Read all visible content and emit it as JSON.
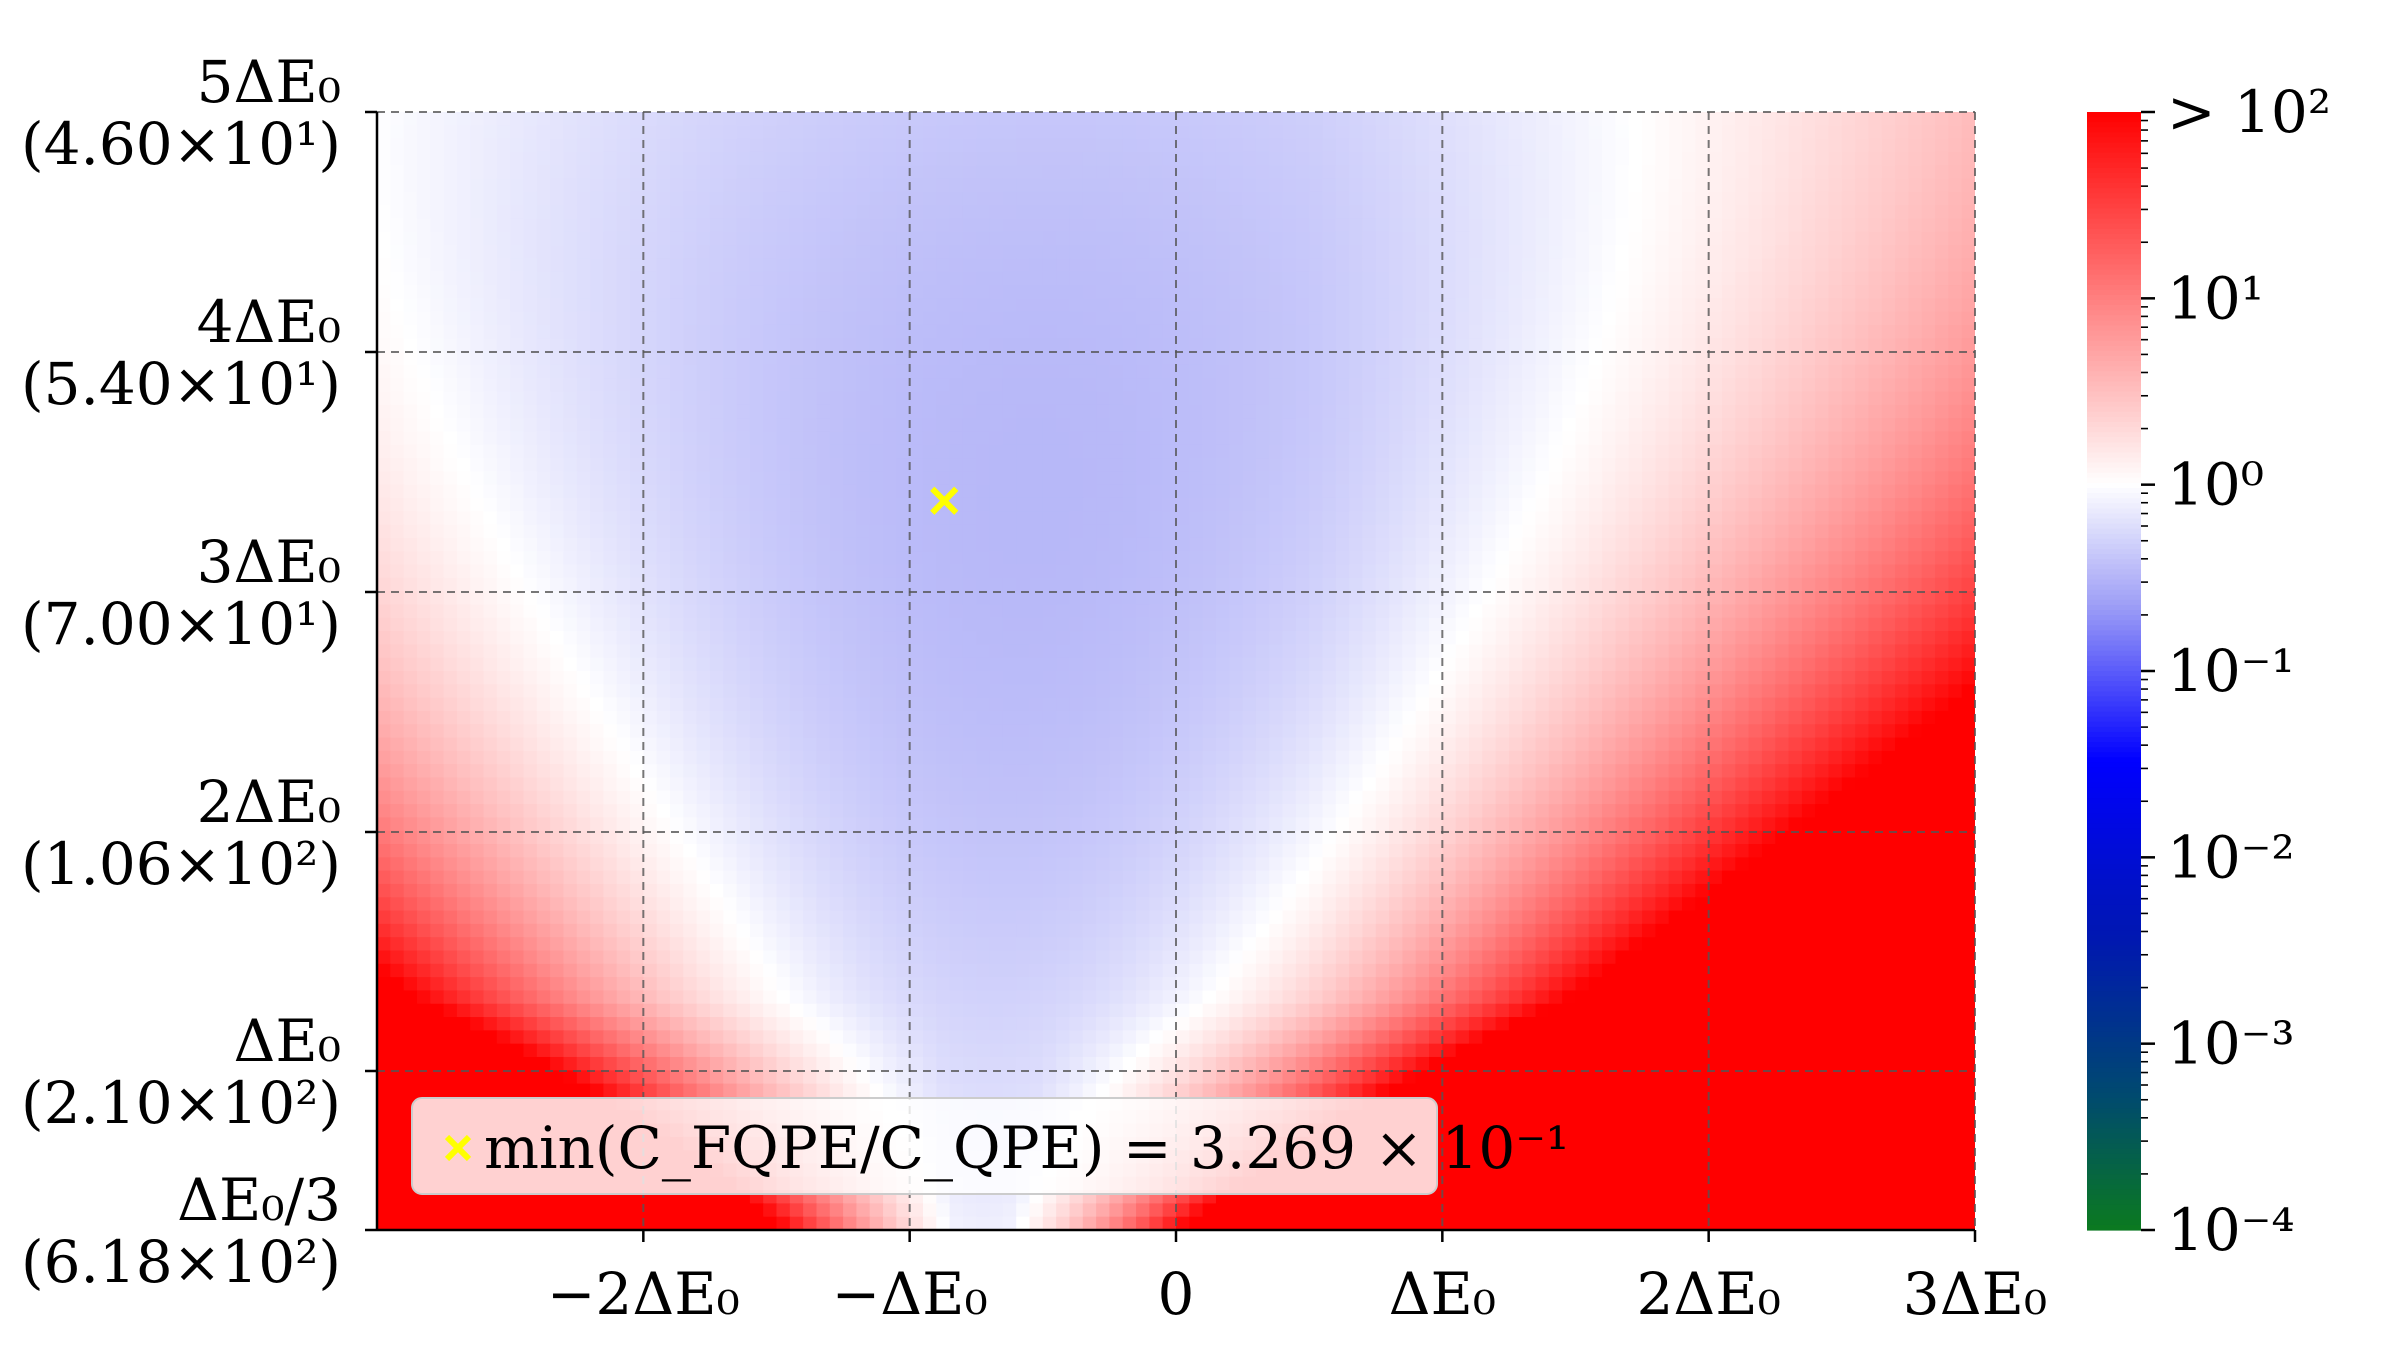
{
  "chart_data": {
    "type": "heatmap",
    "colormap": {
      "scale": "log",
      "range": [
        0.0001,
        100
      ],
      "stops": [
        "#0b7a1f",
        "#004a6f",
        "#0018b0",
        "#0000ff",
        "#9fa0f6",
        "#ffffff",
        "#ffa8a8",
        "#ff0000"
      ],
      "grid": true
    },
    "x_ticks": [
      "−2ΔE₀",
      "−ΔE₀",
      "0",
      "ΔE₀",
      "2ΔE₀",
      "3ΔE₀"
    ],
    "x_tick_values": [
      -2,
      -1,
      0,
      1,
      2,
      3
    ],
    "x_range": [
      -3,
      3
    ],
    "y_ticks": [
      {
        "value": 5,
        "label": "5ΔE₀",
        "sub": "(4.60×10¹)"
      },
      {
        "value": 4,
        "label": "4ΔE₀",
        "sub": "(5.40×10¹)"
      },
      {
        "value": 3,
        "label": "3ΔE₀",
        "sub": "(7.00×10¹)"
      },
      {
        "value": 2,
        "label": "2ΔE₀",
        "sub": "(1.06×10²)"
      },
      {
        "value": 1,
        "label": "ΔE₀",
        "sub": "(2.10×10²)"
      },
      {
        "value": 0.333,
        "label": "ΔE₀/3",
        "sub": "(6.18×10²)"
      }
    ],
    "y_range": [
      0.333,
      5
    ],
    "colorbar_ticks": [
      "> 10²",
      "10¹",
      "10⁰",
      "10⁻¹",
      "10⁻²",
      "10⁻³",
      "10⁻⁴"
    ],
    "colorbar_tick_values": [
      100,
      10,
      1,
      0.1,
      0.01,
      0.001,
      0.0001
    ],
    "minimum_marker": {
      "x": -0.87,
      "y": 3.38,
      "color": "#ffff00"
    },
    "legend": {
      "text": "min(C_FQPE/C_QPE) = 3.269 × 10⁻¹",
      "placement": "lower-left"
    },
    "field_description_values": {
      "min_value": 0.3269,
      "max_value": 100
    }
  }
}
